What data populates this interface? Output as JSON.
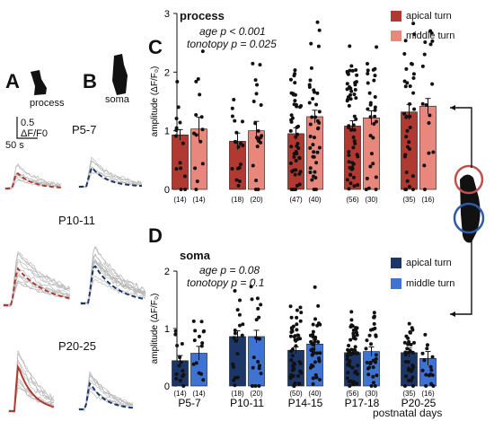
{
  "panels": {
    "A": "A",
    "B": "B",
    "C": "C",
    "D": "D",
    "process_label": "process",
    "soma_label": "soma"
  },
  "scale_bar": {
    "amp": "0.5",
    "amp_unit": "ΔF/F0",
    "time": "50 s"
  },
  "age_groups_left": [
    "P5-7",
    "P10-11",
    "P20-25"
  ],
  "colors": {
    "apical_process": "#b03a32",
    "middle_process": "#e8877c",
    "apical_soma": "#1c3668",
    "middle_soma": "#3e73d4",
    "trace_grey": "#b8b8b8",
    "ring_red": "#c0504d",
    "ring_blue": "#2f5aa8"
  },
  "chart_data": [
    {
      "type": "bar",
      "title": "process",
      "stats": [
        "age p < 0.001",
        "tonotopy p = 0.025"
      ],
      "ylabel": "amplitude (ΔF/F₀)",
      "ylim": [
        0,
        3
      ],
      "yticks": [
        "0",
        "1",
        "2",
        "3"
      ],
      "categories": [
        "P5-7",
        "P10-11",
        "P14-15",
        "P17-18",
        "P20-25"
      ],
      "series": [
        {
          "name": "apical turn",
          "values": [
            0.93,
            0.82,
            0.95,
            1.08,
            1.32
          ],
          "err": [
            0.09,
            0.14,
            0.1,
            0.09,
            0.13
          ],
          "n": [
            "(14)",
            "(18)",
            "(47)",
            "(56)",
            "(35)"
          ]
        },
        {
          "name": "middle turn",
          "values": [
            1.03,
            1.0,
            1.24,
            1.22,
            1.42
          ],
          "err": [
            0.2,
            0.16,
            0.11,
            0.12,
            0.13
          ],
          "n": [
            "(14)",
            "(20)",
            "(40)",
            "(30)",
            "(16)"
          ]
        }
      ],
      "legend": "top-right"
    },
    {
      "type": "bar",
      "title": "soma",
      "stats": [
        "age p = 0.08",
        "tonotopy p = 0.1"
      ],
      "ylabel": "amplitude (ΔF/F₀)",
      "ylim": [
        0,
        2
      ],
      "yticks": [
        "0",
        "1",
        "2"
      ],
      "categories": [
        "P5-7",
        "P10-11",
        "P14-15",
        "P17-18",
        "P20-25"
      ],
      "xlabel_extra": "postnatal days",
      "series": [
        {
          "name": "apical turn",
          "values": [
            0.44,
            0.86,
            0.62,
            0.58,
            0.58
          ],
          "err": [
            0.09,
            0.1,
            0.06,
            0.05,
            0.08
          ],
          "n": [
            "(14)",
            "(18)",
            "(50)",
            "(56)",
            "(35)"
          ]
        },
        {
          "name": "middle turn",
          "values": [
            0.57,
            0.86,
            0.73,
            0.6,
            0.48
          ],
          "err": [
            0.12,
            0.11,
            0.07,
            0.08,
            0.12
          ],
          "n": [
            "(14)",
            "(20)",
            "(40)",
            "(30)",
            "(16)"
          ]
        }
      ],
      "legend": "right"
    }
  ]
}
